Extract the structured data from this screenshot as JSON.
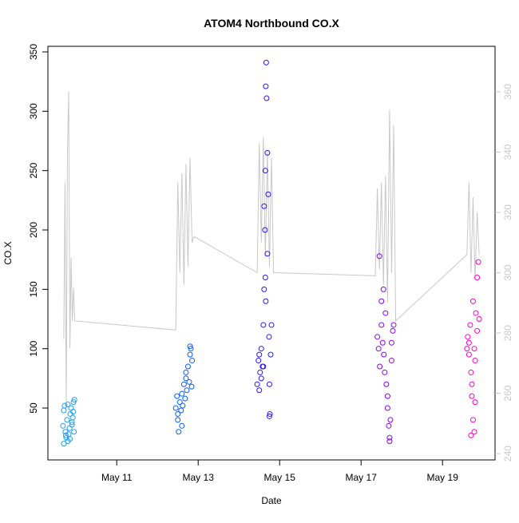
{
  "chart_data": {
    "type": "scatter",
    "title": "ATOM4 Northbound CO.X",
    "x_label": "Date",
    "y_label": "CO.X",
    "xlim": [
      9.31,
      20.29
    ],
    "xticks": [
      {
        "value": 11,
        "label": "May 11"
      },
      {
        "value": 13,
        "label": "May 13"
      },
      {
        "value": 15,
        "label": "May 15"
      },
      {
        "value": 17,
        "label": "May 17"
      },
      {
        "value": 19,
        "label": "May 19"
      }
    ],
    "ylim": [
      6.3,
      354.7
    ],
    "yticks": [
      50,
      100,
      150,
      200,
      250,
      300,
      350
    ],
    "y2lim": [
      237.9,
      375.1
    ],
    "y2ticks": [
      240,
      260,
      280,
      300,
      320,
      340,
      360
    ],
    "y2_tick_color": "#c8c8c8",
    "series": [
      {
        "color": "#1e9ff0",
        "x": [
          9.68,
          9.7,
          9.72,
          9.74,
          9.76,
          9.78,
          9.8,
          9.82,
          9.84,
          9.86,
          9.88,
          9.9,
          9.92,
          9.94,
          9.96,
          9.7,
          9.75,
          9.8,
          9.85,
          9.9,
          9.93,
          9.95
        ],
        "values": [
          35,
          48,
          52,
          30,
          25,
          40,
          22,
          28,
          33,
          45,
          50,
          38,
          42,
          55,
          57,
          20,
          27,
          53,
          24,
          36,
          47,
          30
        ]
      },
      {
        "color": "#0a5cff",
        "x": [
          12.45,
          12.48,
          12.5,
          12.52,
          12.55,
          12.58,
          12.6,
          12.62,
          12.65,
          12.68,
          12.7,
          12.72,
          12.75,
          12.78,
          12.8,
          12.82,
          12.85,
          12.5,
          12.6,
          12.7,
          12.8,
          12.84
        ],
        "values": [
          50,
          60,
          45,
          30,
          55,
          48,
          62,
          52,
          70,
          58,
          75,
          65,
          85,
          72,
          95,
          100,
          90,
          40,
          35,
          80,
          102,
          68
        ]
      },
      {
        "color": "#2a14ff",
        "x": [
          14.45,
          14.48,
          14.5,
          14.52,
          14.55,
          14.58,
          14.6,
          14.62,
          14.64,
          14.65,
          14.66,
          14.67,
          14.68,
          14.7,
          14.72,
          14.74,
          14.75,
          14.76,
          14.78,
          14.8,
          14.5,
          14.55,
          14.6,
          14.65,
          14.7,
          14.75,
          14.62,
          14.66
        ],
        "values": [
          70,
          90,
          95,
          80,
          100,
          85,
          120,
          150,
          200,
          250,
          321,
          341,
          311,
          180,
          230,
          110,
          70,
          45,
          95,
          120,
          65,
          75,
          85,
          160,
          265,
          43,
          220,
          140
        ]
      },
      {
        "color": "#8a00ff",
        "x": [
          17.4,
          17.43,
          17.46,
          17.5,
          17.53,
          17.56,
          17.6,
          17.62,
          17.65,
          17.68,
          17.7,
          17.72,
          17.75,
          17.78,
          17.8,
          17.45,
          17.55,
          17.65,
          17.7,
          17.75,
          17.58,
          17.5
        ],
        "values": [
          110,
          100,
          85,
          120,
          105,
          95,
          130,
          70,
          50,
          35,
          25,
          40,
          90,
          115,
          120,
          178,
          150,
          60,
          22,
          105,
          80,
          140
        ]
      },
      {
        "color": "#ff00cc",
        "x": [
          19.6,
          19.62,
          19.65,
          19.68,
          19.7,
          19.72,
          19.75,
          19.78,
          19.8,
          19.82,
          19.85,
          19.88,
          19.9,
          19.65,
          19.7,
          19.75,
          19.8,
          19.85,
          19.72,
          19.78
        ],
        "values": [
          100,
          110,
          95,
          120,
          80,
          60,
          40,
          30,
          90,
          130,
          160,
          173,
          125,
          105,
          27,
          140,
          55,
          115,
          70,
          100
        ]
      },
      {
        "type": "line",
        "axis": "y2",
        "color": "#c8c8c8",
        "x": [
          9.7,
          9.73,
          9.76,
          9.79,
          9.82,
          9.85,
          9.88,
          9.91,
          9.94,
          9.97,
          12.45,
          12.5,
          12.55,
          12.6,
          12.65,
          12.7,
          12.75,
          12.8,
          12.85,
          12.9,
          14.45,
          14.5,
          14.55,
          14.6,
          14.65,
          14.7,
          14.75,
          14.8,
          14.85,
          17.35,
          17.4,
          17.45,
          17.5,
          17.55,
          17.6,
          17.65,
          17.7,
          17.75,
          17.8,
          17.85,
          19.6,
          19.65,
          19.7,
          19.75,
          19.8,
          19.85,
          19.9
        ],
        "values": [
          278,
          330,
          256,
          340,
          360,
          275,
          305,
          284,
          295,
          284,
          281,
          330,
          300,
          333,
          296,
          336,
          302,
          338,
          310,
          312,
          300,
          343,
          310,
          345,
          305,
          340,
          302,
          338,
          300,
          299,
          328,
          301,
          330,
          296,
          332,
          290,
          354,
          300,
          349,
          284,
          306,
          330,
          300,
          325,
          298,
          320,
          306
        ]
      }
    ]
  }
}
